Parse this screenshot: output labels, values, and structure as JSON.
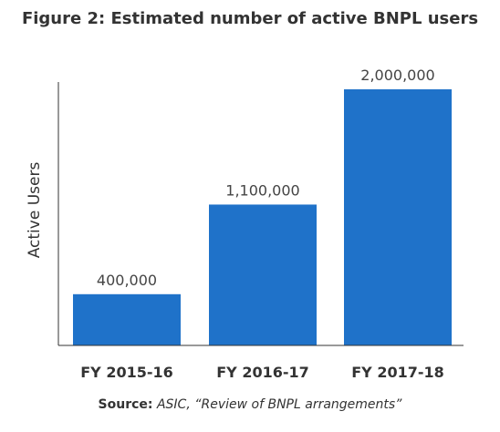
{
  "title": "Figure 2: Estimated number of active BNPL users",
  "chart_data": {
    "type": "bar",
    "categories": [
      "FY 2015-16",
      "FY 2016-17",
      "FY 2017-18"
    ],
    "values": [
      400000,
      1100000,
      2000000
    ],
    "data_labels": [
      "400,000",
      "1,100,000",
      "2,000,000"
    ],
    "ylabel": "Active Users",
    "xlabel": "",
    "ylim": [
      0,
      2000000
    ],
    "grid": false,
    "legend": "none",
    "bar_color": "#1f72c9"
  },
  "source": {
    "label": "Source:",
    "text": "ASIC, “Review of BNPL arrangements”"
  }
}
